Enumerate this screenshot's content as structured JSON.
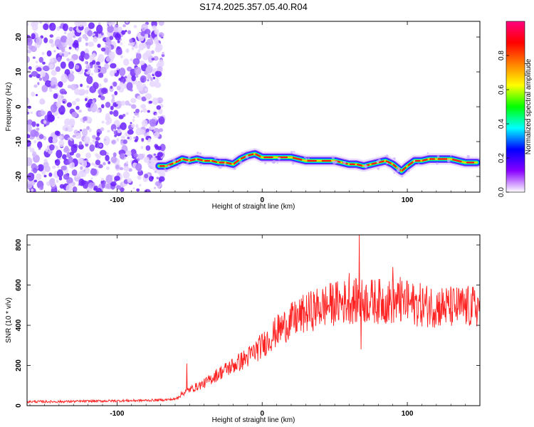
{
  "chart_data": [
    {
      "type": "heatmap",
      "title": "S174.2025.357.05.40.R04",
      "xlabel": "Height of straight line (km)",
      "ylabel": "Frequency (Hz)",
      "xlim": [
        -162,
        150
      ],
      "ylim": [
        -24.5,
        24.5
      ],
      "x_ticks": [
        -100,
        0,
        100
      ],
      "x_tick_labels": [
        "-100",
        "0",
        "100"
      ],
      "y_ticks": [
        -20,
        -10,
        0,
        10,
        20
      ],
      "y_tick_labels": [
        "-20",
        "-10",
        "0",
        "10",
        "20"
      ],
      "noise_region_x": [
        -162,
        -68
      ],
      "signal_track": {
        "x": [
          -71,
          -66,
          -60,
          -55,
          -50,
          -45,
          -40,
          -35,
          -30,
          -25,
          -20,
          -15,
          -10,
          -5,
          0,
          10,
          20,
          30,
          40,
          50,
          55,
          60,
          65,
          70,
          75,
          80,
          85,
          90,
          93,
          96,
          100,
          105,
          110,
          115,
          120,
          130,
          140,
          148
        ],
        "y": [
          -17,
          -17,
          -16,
          -15,
          -15.5,
          -15,
          -15.5,
          -15.5,
          -16,
          -16,
          -16.5,
          -15,
          -14,
          -13.5,
          -14.5,
          -14.5,
          -14.5,
          -15.5,
          -15.5,
          -15.5,
          -16,
          -16.5,
          -16.5,
          -17,
          -16.5,
          -16,
          -15.5,
          -16.5,
          -17.5,
          -18.5,
          -17,
          -15.5,
          -15.5,
          -15,
          -15,
          -15,
          -16,
          -16
        ]
      },
      "colorbar": {
        "label": "Normalized spectral amplitude",
        "range": [
          0,
          1
        ],
        "ticks": [
          0.0,
          0.2,
          0.4,
          0.6,
          0.8
        ],
        "tick_labels": [
          "0.0",
          "0.2",
          "0.4",
          "0.6",
          "0.8"
        ],
        "colors": [
          "#ffffff",
          "#8800ff",
          "#0000ff",
          "#00ffff",
          "#00ff00",
          "#ffff00",
          "#ff8000",
          "#ff0000",
          "#ff0080"
        ]
      }
    },
    {
      "type": "line",
      "title": "",
      "xlabel": "Height of straight line (km)",
      "ylabel": "SNR (10 * v/v)",
      "xlim": [
        -162,
        150
      ],
      "ylim": [
        0,
        850
      ],
      "x_ticks": [
        -100,
        0,
        100
      ],
      "x_tick_labels": [
        "-100",
        "0",
        "100"
      ],
      "y_ticks": [
        0,
        200,
        400,
        600,
        800
      ],
      "y_tick_labels": [
        "0",
        "200",
        "400",
        "600",
        "800"
      ],
      "line_color": "#ff2020",
      "trend": {
        "x": [
          -162,
          -140,
          -120,
          -100,
          -80,
          -70,
          -60,
          -55,
          -50,
          -40,
          -30,
          -20,
          -10,
          0,
          10,
          20,
          30,
          40,
          50,
          60,
          70,
          80,
          90,
          100,
          110,
          120,
          130,
          140,
          150
        ],
        "y": [
          20,
          20,
          22,
          24,
          26,
          28,
          32,
          60,
          80,
          110,
          160,
          200,
          240,
          300,
          370,
          420,
          460,
          490,
          510,
          520,
          520,
          520,
          515,
          510,
          500,
          495,
          490,
          490,
          490
        ]
      },
      "spikes": [
        {
          "x": -52,
          "y": 210
        },
        {
          "x": 67,
          "y": 850
        },
        {
          "x": 68,
          "y": 280
        },
        {
          "x": 60,
          "y": 660
        },
        {
          "x": 90,
          "y": 690
        },
        {
          "x": 95,
          "y": 640
        },
        {
          "x": 100,
          "y": 620
        }
      ]
    }
  ]
}
